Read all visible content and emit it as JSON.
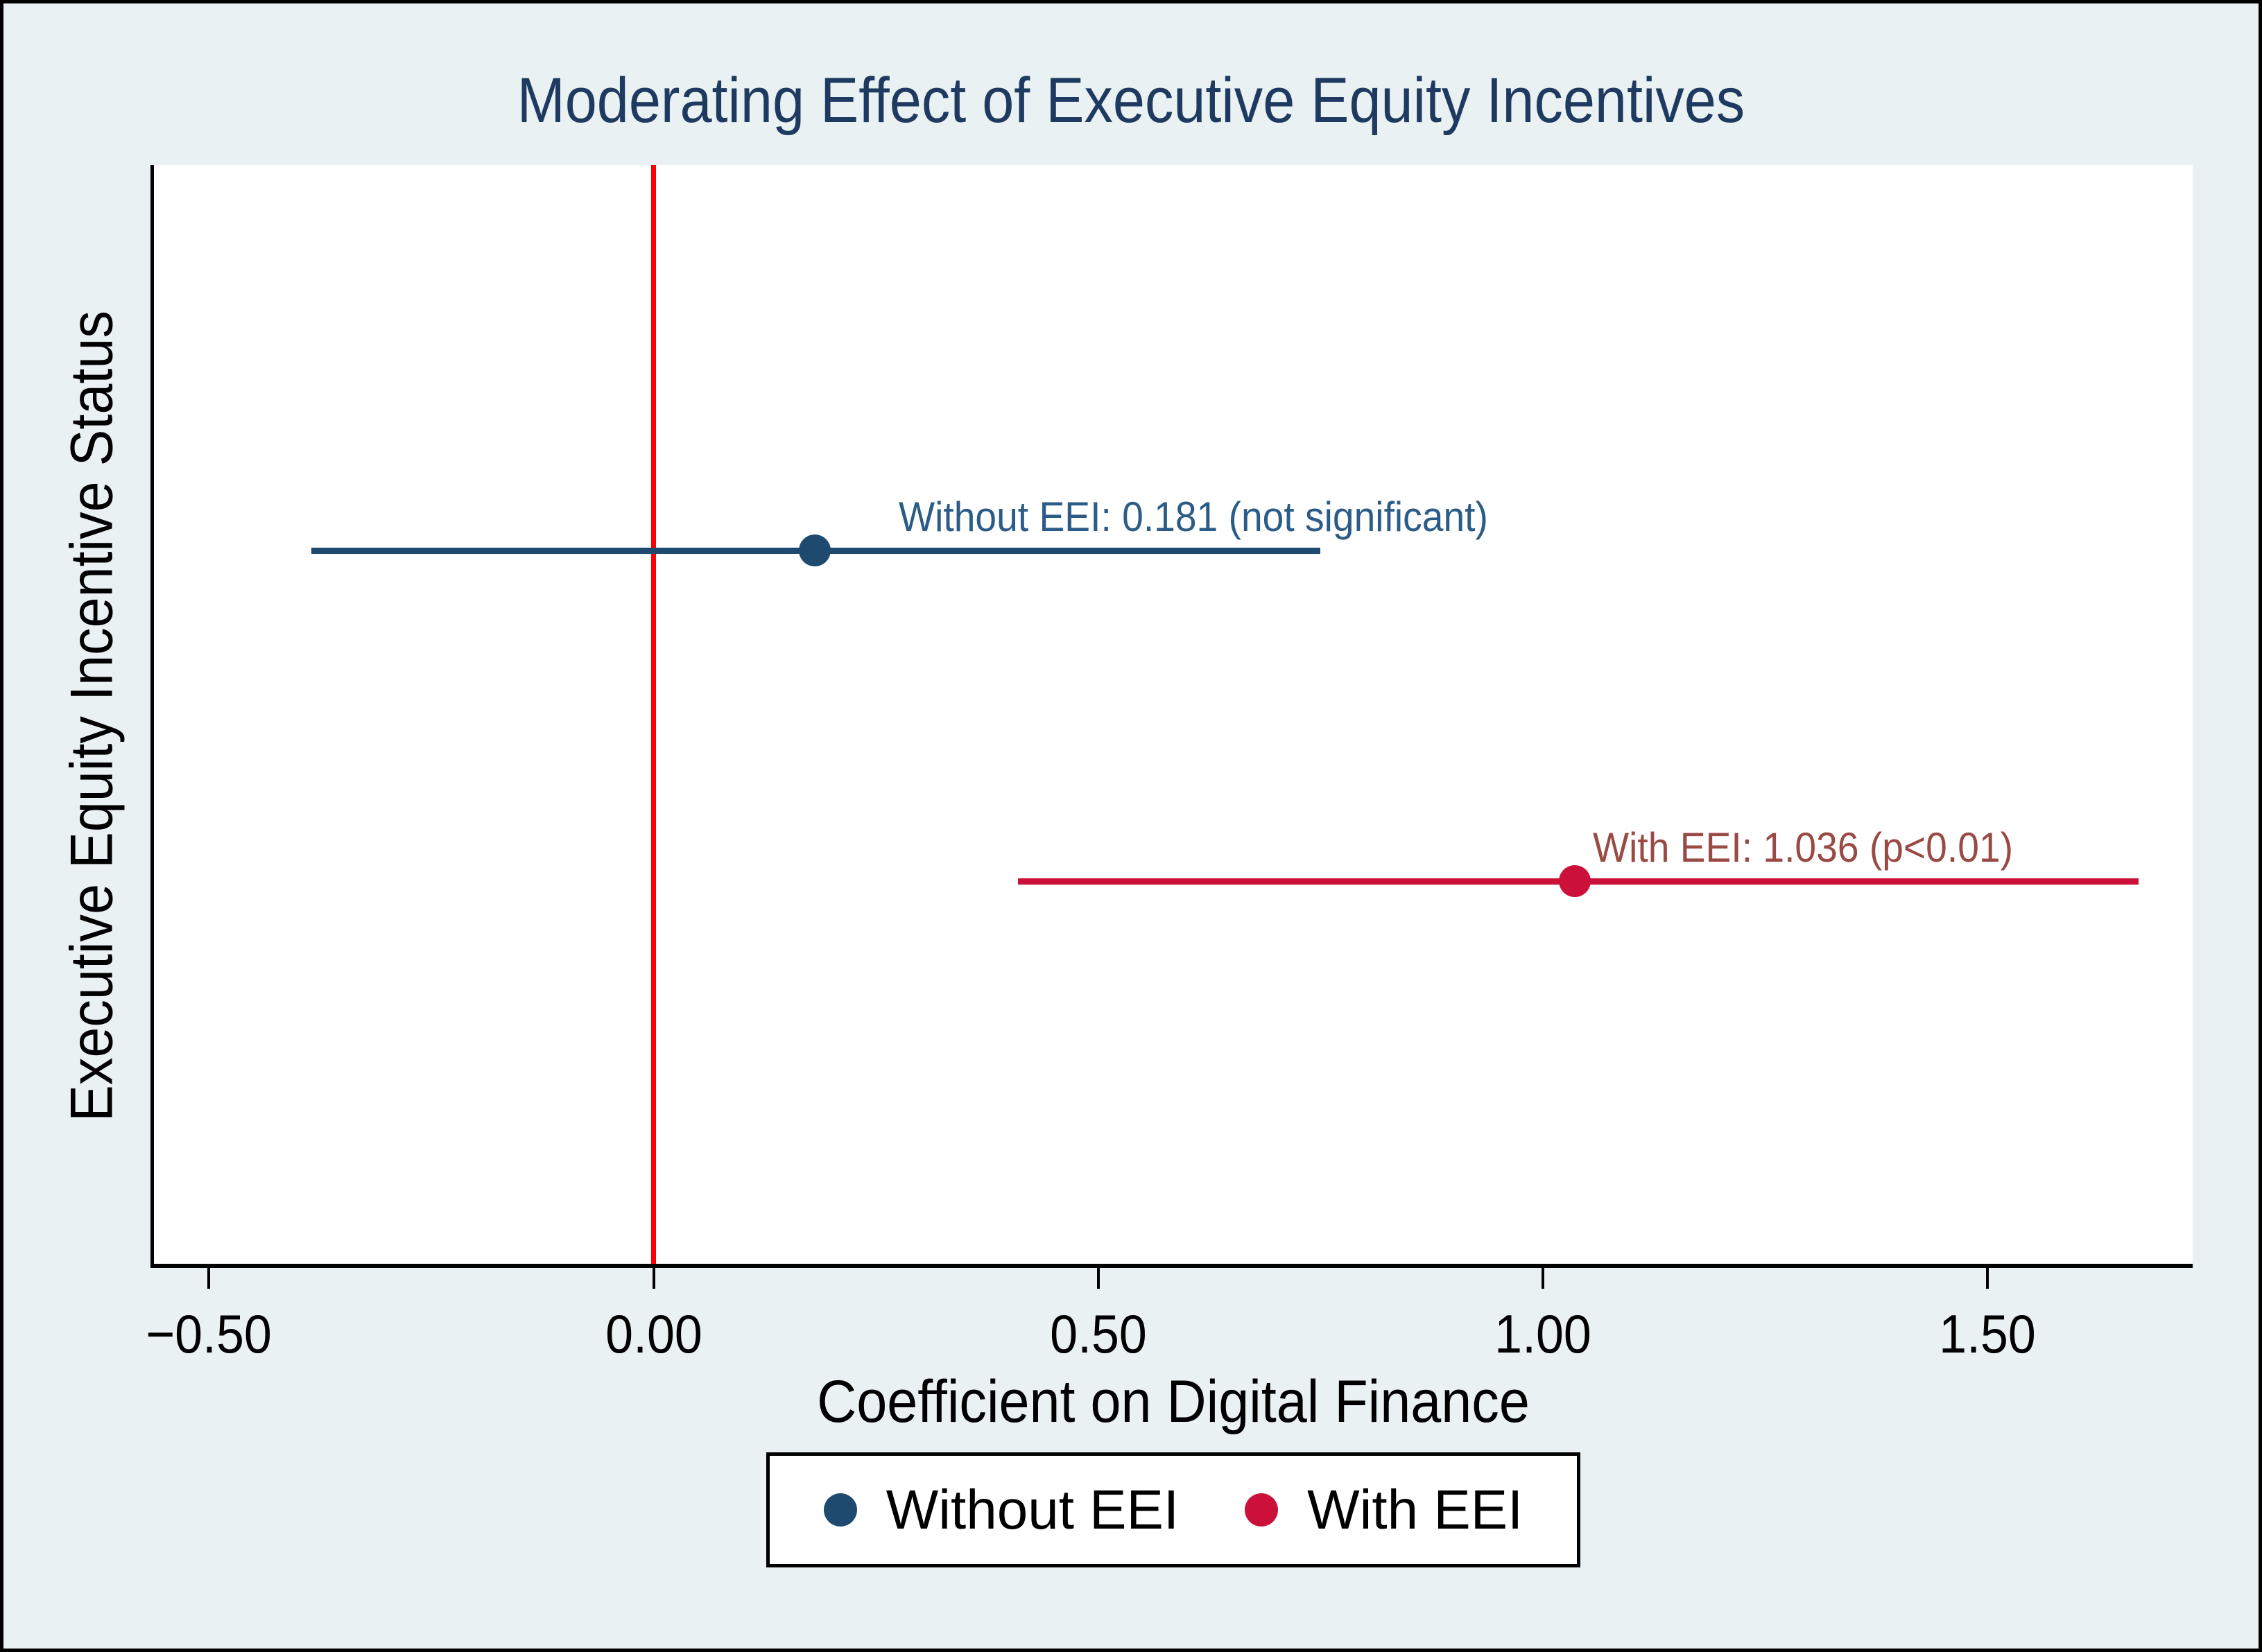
{
  "figure": {
    "background_color": "#e9f1f2",
    "plot_background": "#ffffff",
    "border_color": "#000000",
    "title_color": "#1f3a60"
  },
  "chart_data": {
    "type": "scatter",
    "subtype": "horizontal-coefficient-plot",
    "title": "Moderating Effect of Executive Equity Incentives",
    "xlabel": "Coefficient on Digital Finance",
    "ylabel": "Executive Equity Incentive Status",
    "xlim": [
      -0.562,
      1.731
    ],
    "grid": false,
    "xticks": [
      {
        "value": -0.5,
        "label": "−0.50"
      },
      {
        "value": 0.0,
        "label": "0.00"
      },
      {
        "value": 0.5,
        "label": "0.50"
      },
      {
        "value": 1.0,
        "label": "1.00"
      },
      {
        "value": 1.5,
        "label": "1.50"
      }
    ],
    "zero_line": {
      "value": 0,
      "color": "#fe0000",
      "width": 7
    },
    "series": [
      {
        "name": "Without EEI",
        "point": 0.181,
        "ci_low": -0.385,
        "ci_high": 0.75,
        "row_frac": 0.351,
        "color": "#1d4a6e",
        "annotation": "Without EEI: 0.181 (not significant)",
        "annotation_color": "#2b5c87",
        "annotation_anchor_x": 0.276
      },
      {
        "name": "With EEI",
        "point": 1.036,
        "ci_low": 0.41,
        "ci_high": 1.67,
        "row_frac": 0.652,
        "color": "#cb1039",
        "annotation": "With EEI: 1.036 (p<0.01)",
        "annotation_color": "#9a4a45",
        "annotation_anchor_x": 1.056
      }
    ],
    "legend": {
      "position": "bottom",
      "items": [
        {
          "label": "Without EEI",
          "color": "#1d4a6e"
        },
        {
          "label": "With EEI",
          "color": "#cb1039"
        }
      ]
    }
  }
}
